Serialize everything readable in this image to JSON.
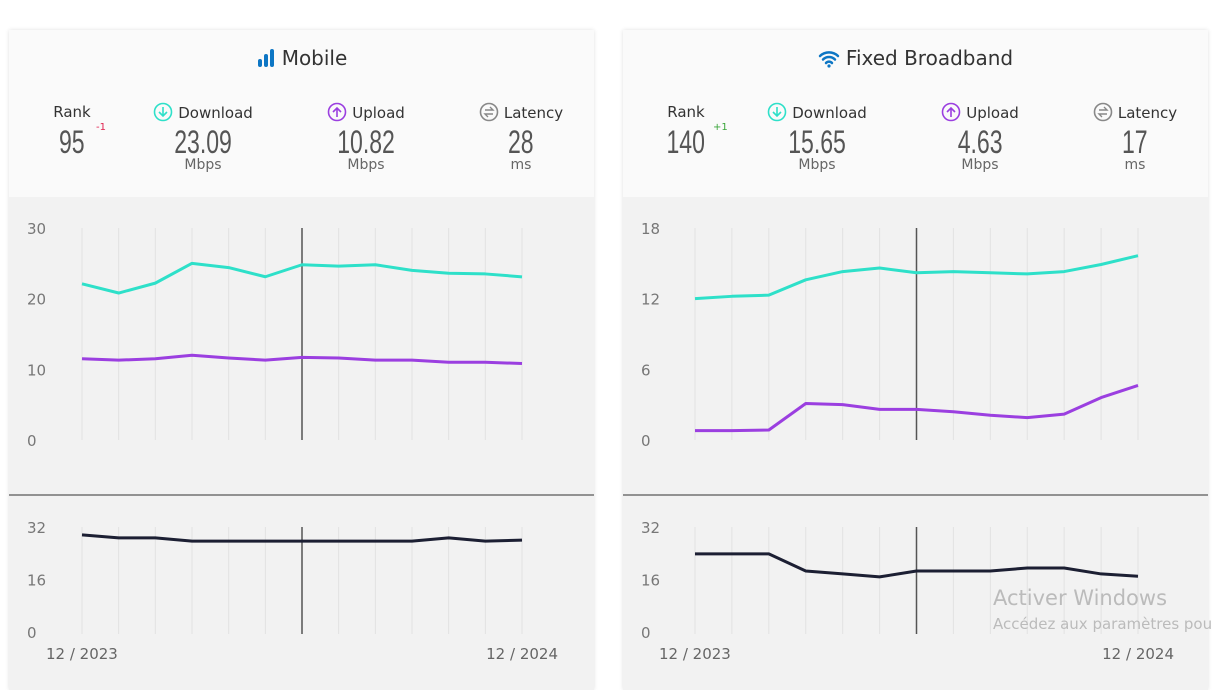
{
  "colors": {
    "download": "#2ee0c9",
    "upload": "#9b3fe0",
    "latency": "#1c1f33",
    "accent": "#0d76c4",
    "rank_down": "#e0234f",
    "rank_up": "#3aa53a"
  },
  "cards": [
    {
      "title": "Mobile",
      "icon": "signal-bars-icon",
      "rank": "95",
      "rank_delta": "-1",
      "rank_delta_dir": "down",
      "download": {
        "label": "Download",
        "value": "23.09",
        "unit": "Mbps"
      },
      "upload": {
        "label": "Upload",
        "value": "10.82",
        "unit": "Mbps"
      },
      "latency": {
        "label": "Latency",
        "value": "28",
        "unit": "ms"
      },
      "rank_label": "Rank",
      "chart_data": {
        "type": "line",
        "x_labels": [
          "12 / 2023",
          "12 / 2024"
        ],
        "points": 13,
        "highlight_index": 6,
        "speed": {
          "ylim": [
            0,
            30
          ],
          "yticks": [
            "0",
            "10",
            "20",
            "30"
          ],
          "series": [
            {
              "name": "Download",
              "values": [
                22.1,
                20.8,
                22.2,
                25.0,
                24.4,
                23.1,
                24.8,
                24.6,
                24.8,
                24.0,
                23.6,
                23.5,
                23.09
              ]
            },
            {
              "name": "Upload",
              "values": [
                11.5,
                11.3,
                11.5,
                12.0,
                11.6,
                11.3,
                11.7,
                11.6,
                11.3,
                11.3,
                11.0,
                11.0,
                10.82
              ]
            }
          ]
        },
        "latency": {
          "ylim": [
            0,
            32
          ],
          "yticks": [
            "0",
            "16",
            "32"
          ],
          "series": [
            {
              "name": "Latency",
              "values": [
                29.6,
                28.7,
                28.7,
                27.7,
                27.7,
                27.7,
                27.7,
                27.7,
                27.7,
                27.7,
                28.7,
                27.7,
                28
              ]
            }
          ]
        }
      }
    },
    {
      "title": "Fixed Broadband",
      "icon": "wifi-icon",
      "rank": "140",
      "rank_delta": "+1",
      "rank_delta_dir": "up",
      "download": {
        "label": "Download",
        "value": "15.65",
        "unit": "Mbps"
      },
      "upload": {
        "label": "Upload",
        "value": "4.63",
        "unit": "Mbps"
      },
      "latency": {
        "label": "Latency",
        "value": "17",
        "unit": "ms"
      },
      "rank_label": "Rank",
      "chart_data": {
        "type": "line",
        "x_labels": [
          "12 / 2023",
          "12 / 2024"
        ],
        "points": 13,
        "highlight_index": 6,
        "speed": {
          "ylim": [
            0,
            18
          ],
          "yticks": [
            "0",
            "6",
            "12",
            "18"
          ],
          "series": [
            {
              "name": "Download",
              "values": [
                12.0,
                12.2,
                12.3,
                13.6,
                14.3,
                14.6,
                14.2,
                14.3,
                14.2,
                14.1,
                14.3,
                14.9,
                15.65
              ]
            },
            {
              "name": "Upload",
              "values": [
                0.8,
                0.8,
                0.85,
                3.1,
                3.0,
                2.6,
                2.6,
                2.4,
                2.1,
                1.9,
                2.2,
                3.6,
                4.63
              ]
            }
          ]
        },
        "latency": {
          "ylim": [
            0,
            32
          ],
          "yticks": [
            "0",
            "16",
            "32"
          ],
          "series": [
            {
              "name": "Latency",
              "values": [
                23.8,
                23.8,
                23.8,
                18.6,
                17.7,
                16.8,
                18.6,
                18.6,
                18.6,
                19.5,
                19.5,
                17.7,
                17
              ]
            }
          ]
        }
      }
    }
  ],
  "watermark": {
    "line1": "Activer Windows",
    "line2": "Accédez aux paramètres pou"
  }
}
